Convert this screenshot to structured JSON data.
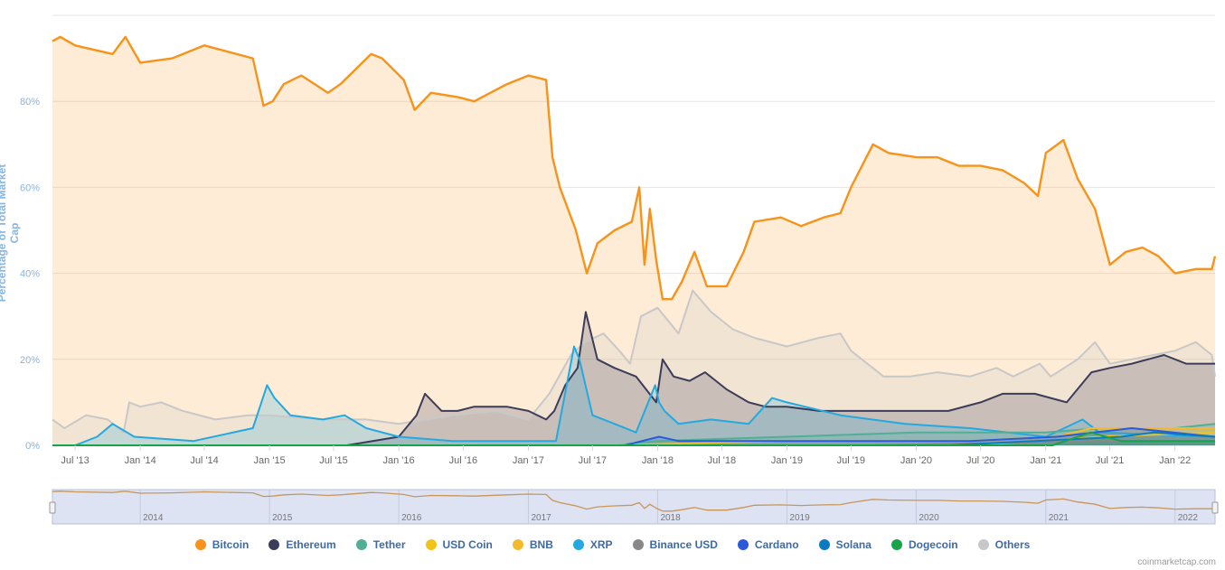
{
  "chart_data": {
    "type": "area",
    "ylabel": "Percentage of Total Market Cap",
    "ylim": [
      0,
      100
    ],
    "y_ticks": [
      "0%",
      "20%",
      "40%",
      "60%",
      "80%"
    ],
    "x_ticks": [
      "Jul '13",
      "Jan '14",
      "Jul '14",
      "Jan '15",
      "Jul '15",
      "Jan '16",
      "Jul '16",
      "Jan '17",
      "Jul '17",
      "Jan '18",
      "Jul '18",
      "Jan '19",
      "Jul '19",
      "Jan '20",
      "Jul '20",
      "Jan '21",
      "Jul '21",
      "Jan '22"
    ],
    "navigator_years": [
      "2014",
      "2015",
      "2016",
      "2017",
      "2018",
      "2019",
      "2020",
      "2021",
      "2022"
    ],
    "x_range": [
      "2013-04-28",
      "2022-04-24"
    ],
    "series": [
      {
        "name": "Bitcoin",
        "color": "#f7931a",
        "x": [
          "2013-04-28",
          "2013-05-20",
          "2013-07-01",
          "2013-10-15",
          "2013-11-20",
          "2014-01-01",
          "2014-04-01",
          "2014-07-01",
          "2014-11-15",
          "2014-12-15",
          "2015-01-10",
          "2015-02-10",
          "2015-04-01",
          "2015-06-15",
          "2015-07-20",
          "2015-10-15",
          "2015-11-15",
          "2016-01-15",
          "2016-02-15",
          "2016-04-01",
          "2016-06-15",
          "2016-08-01",
          "2016-11-01",
          "2017-01-01",
          "2017-02-20",
          "2017-03-10",
          "2017-03-31",
          "2017-05-15",
          "2017-06-15",
          "2017-07-15",
          "2017-09-01",
          "2017-10-20",
          "2017-11-10",
          "2017-11-25",
          "2017-12-10",
          "2017-12-28",
          "2018-01-15",
          "2018-02-10",
          "2018-03-10",
          "2018-04-15",
          "2018-05-20",
          "2018-07-15",
          "2018-09-01",
          "2018-10-01",
          "2018-12-15",
          "2019-02-10",
          "2019-04-15",
          "2019-06-01",
          "2019-07-01",
          "2019-09-01",
          "2019-10-15",
          "2020-01-01",
          "2020-03-01",
          "2020-05-01",
          "2020-07-01",
          "2020-09-01",
          "2020-11-01",
          "2020-12-10",
          "2021-01-01",
          "2021-02-20",
          "2021-04-01",
          "2021-05-20",
          "2021-07-01",
          "2021-08-15",
          "2021-10-01",
          "2021-11-15",
          "2022-01-01",
          "2022-03-01",
          "2022-04-15",
          "2022-04-24"
        ],
        "values": [
          94,
          95,
          93,
          91,
          95,
          89,
          90,
          93,
          90,
          79,
          80,
          84,
          86,
          82,
          84,
          91,
          90,
          85,
          78,
          82,
          81,
          80,
          84,
          86,
          85,
          67,
          60,
          50,
          40,
          47,
          50,
          52,
          60,
          42,
          55,
          43,
          34,
          34,
          38,
          45,
          37,
          37,
          45,
          52,
          53,
          51,
          53,
          54,
          60,
          70,
          68,
          67,
          67,
          65,
          65,
          64,
          61,
          58,
          68,
          71,
          62,
          55,
          42,
          45,
          46,
          44,
          40,
          41,
          41,
          44
        ]
      },
      {
        "name": "Ethereum",
        "color": "#3c3c5a",
        "x": [
          "2013-04-28",
          "2015-08-07",
          "2016-01-01",
          "2016-02-20",
          "2016-03-15",
          "2016-05-01",
          "2016-06-15",
          "2016-08-01",
          "2016-11-01",
          "2017-01-01",
          "2017-02-20",
          "2017-03-15",
          "2017-04-15",
          "2017-05-20",
          "2017-06-12",
          "2017-07-15",
          "2017-09-01",
          "2017-11-01",
          "2017-12-28",
          "2018-01-15",
          "2018-02-15",
          "2018-04-01",
          "2018-05-15",
          "2018-07-15",
          "2018-09-15",
          "2018-11-01",
          "2019-01-01",
          "2019-04-01",
          "2019-07-01",
          "2019-10-01",
          "2020-01-01",
          "2020-04-01",
          "2020-07-01",
          "2020-09-01",
          "2020-12-01",
          "2021-01-15",
          "2021-03-01",
          "2021-05-10",
          "2021-07-01",
          "2021-09-01",
          "2021-12-01",
          "2022-02-01",
          "2022-04-24"
        ],
        "values": [
          0,
          0,
          2,
          7,
          12,
          8,
          8,
          9,
          9,
          8,
          6,
          8,
          14,
          18,
          31,
          20,
          18,
          16,
          10,
          20,
          16,
          15,
          17,
          13,
          10,
          9,
          9,
          8,
          8,
          8,
          8,
          8,
          10,
          12,
          12,
          11,
          10,
          17,
          18,
          19,
          21,
          19,
          19
        ]
      },
      {
        "name": "XRP",
        "color": "#23a9e0",
        "x": [
          "2013-04-28",
          "2013-07-01",
          "2013-09-01",
          "2013-10-15",
          "2013-12-15",
          "2014-06-01",
          "2014-11-15",
          "2014-12-25",
          "2015-01-15",
          "2015-03-01",
          "2015-06-01",
          "2015-08-01",
          "2015-10-01",
          "2016-01-01",
          "2016-06-01",
          "2017-01-01",
          "2017-03-20",
          "2017-05-10",
          "2017-05-25",
          "2017-07-01",
          "2017-09-01",
          "2017-11-01",
          "2017-12-25",
          "2018-01-05",
          "2018-01-20",
          "2018-03-01",
          "2018-06-01",
          "2018-09-15",
          "2018-11-20",
          "2019-01-01",
          "2019-06-01",
          "2019-12-01",
          "2020-06-01",
          "2021-01-01",
          "2021-04-15",
          "2021-06-01",
          "2022-04-24"
        ],
        "values": [
          0,
          0,
          2,
          5,
          2,
          1,
          4,
          14,
          11,
          7,
          6,
          7,
          4,
          2,
          1,
          1,
          1,
          23,
          20,
          7,
          5,
          3,
          14,
          10,
          8,
          5,
          6,
          5,
          11,
          10,
          7,
          5,
          4,
          2,
          6,
          3,
          2
        ]
      },
      {
        "name": "Tether",
        "color": "#50af95",
        "x": [
          "2013-04-28",
          "2015-01-01",
          "2017-09-01",
          "2018-01-01",
          "2019-01-01",
          "2020-01-01",
          "2021-01-01",
          "2021-06-01",
          "2022-01-01",
          "2022-04-24"
        ],
        "values": [
          0,
          0,
          0,
          1,
          2,
          3,
          3,
          4,
          4,
          5
        ]
      },
      {
        "name": "USD Coin",
        "color": "#f0c419",
        "x": [
          "2013-04-28",
          "2018-10-01",
          "2020-06-01",
          "2021-01-01",
          "2021-06-01",
          "2022-04-24"
        ],
        "values": [
          0,
          0,
          0,
          1,
          2,
          3
        ]
      },
      {
        "name": "BNB",
        "color": "#f3ba2f",
        "x": [
          "2013-04-28",
          "2017-08-01",
          "2019-01-01",
          "2020-06-01",
          "2021-02-01",
          "2021-05-10",
          "2022-04-24"
        ],
        "values": [
          0,
          0,
          1,
          1,
          2,
          4,
          4
        ]
      },
      {
        "name": "Binance USD",
        "color": "#888888",
        "x": [
          "2013-04-28",
          "2019-09-01",
          "2021-06-01",
          "2022-04-24"
        ],
        "values": [
          0,
          0,
          1,
          1
        ]
      },
      {
        "name": "Cardano",
        "color": "#2a5ada",
        "x": [
          "2013-04-28",
          "2017-10-01",
          "2018-01-05",
          "2018-03-01",
          "2020-06-01",
          "2021-02-01",
          "2021-09-01",
          "2022-04-24"
        ],
        "values": [
          0,
          0,
          2,
          1,
          1,
          2,
          4,
          2
        ]
      },
      {
        "name": "Solana",
        "color": "#0a7bc2",
        "x": [
          "2013-04-28",
          "2020-04-01",
          "2021-08-01",
          "2021-11-01",
          "2022-04-24"
        ],
        "values": [
          0,
          0,
          2,
          3,
          2
        ]
      },
      {
        "name": "Dogecoin",
        "color": "#17a34a",
        "x": [
          "2013-04-28",
          "2021-01-20",
          "2021-05-08",
          "2021-08-01",
          "2022-04-24"
        ],
        "values": [
          0,
          0,
          3,
          1,
          1
        ]
      },
      {
        "name": "Others",
        "color": "#c8c8c8",
        "x": [
          "2013-04-28",
          "2013-06-01",
          "2013-08-01",
          "2013-10-01",
          "2013-11-15",
          "2013-12-01",
          "2014-01-01",
          "2014-03-01",
          "2014-05-01",
          "2014-08-01",
          "2014-11-01",
          "2015-01-01",
          "2015-06-01",
          "2015-10-01",
          "2016-01-01",
          "2016-06-01",
          "2016-10-01",
          "2017-01-01",
          "2017-03-01",
          "2017-05-01",
          "2017-06-10",
          "2017-08-01",
          "2017-09-15",
          "2017-10-15",
          "2017-11-15",
          "2018-01-01",
          "2018-03-01",
          "2018-04-10",
          "2018-06-01",
          "2018-08-01",
          "2018-10-01",
          "2019-01-01",
          "2019-04-01",
          "2019-06-01",
          "2019-07-01",
          "2019-10-01",
          "2019-12-15",
          "2020-03-01",
          "2020-06-01",
          "2020-08-15",
          "2020-10-01",
          "2020-12-15",
          "2021-01-15",
          "2021-04-01",
          "2021-05-20",
          "2021-07-01",
          "2021-09-01",
          "2021-11-01",
          "2022-01-01",
          "2022-03-01",
          "2022-04-15",
          "2022-04-24"
        ],
        "values": [
          6,
          4,
          7,
          6,
          3,
          10,
          9,
          10,
          8,
          6,
          7,
          7,
          6,
          6,
          5,
          7,
          8,
          6,
          12,
          21,
          24,
          26,
          22,
          19,
          30,
          32,
          26,
          36,
          31,
          27,
          25,
          23,
          25,
          26,
          22,
          16,
          16,
          17,
          16,
          18,
          16,
          19,
          16,
          20,
          24,
          19,
          20,
          21,
          22,
          24,
          21,
          16
        ]
      }
    ]
  },
  "legend": [
    {
      "label": "Bitcoin",
      "color": "#f7931a"
    },
    {
      "label": "Ethereum",
      "color": "#3c3c5a"
    },
    {
      "label": "Tether",
      "color": "#50af95"
    },
    {
      "label": "USD Coin",
      "color": "#f0c419"
    },
    {
      "label": "BNB",
      "color": "#f3ba2f"
    },
    {
      "label": "XRP",
      "color": "#23a9e0"
    },
    {
      "label": "Binance USD",
      "color": "#888888"
    },
    {
      "label": "Cardano",
      "color": "#2a5ada"
    },
    {
      "label": "Solana",
      "color": "#0a7bc2"
    },
    {
      "label": "Dogecoin",
      "color": "#17a34a"
    },
    {
      "label": "Others",
      "color": "#c8c8c8"
    }
  ],
  "credit": "coinmarketcap.com"
}
